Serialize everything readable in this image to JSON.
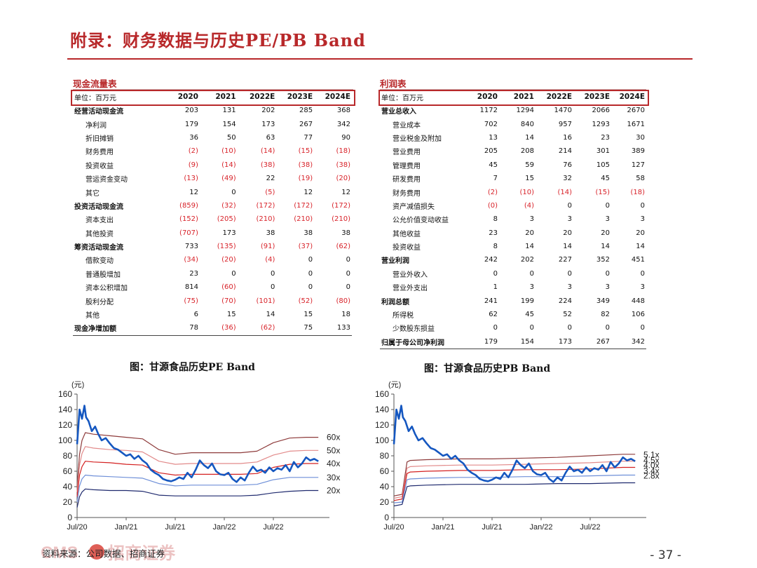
{
  "page": {
    "title": "附录：财务数据与历史PE/PB Band",
    "page_number": "- 37 -",
    "source": "资料来源：公司数据、招商证券",
    "logo_text": "CMS 招商证券"
  },
  "cash_flow": {
    "label": "现金流量表",
    "unit": "单位：百万元",
    "years": [
      "2020",
      "2021",
      "2022E",
      "2023E",
      "2024E"
    ],
    "rows": [
      {
        "label": "经营活动现金流",
        "bold": true,
        "values": [
          "203",
          "131",
          "202",
          "285",
          "368"
        ]
      },
      {
        "label": "净利润",
        "values": [
          "179",
          "154",
          "173",
          "267",
          "342"
        ]
      },
      {
        "label": "折旧摊销",
        "values": [
          "36",
          "50",
          "63",
          "77",
          "90"
        ]
      },
      {
        "label": "财务费用",
        "values": [
          "(2)",
          "(10)",
          "(14)",
          "(15)",
          "(18)"
        ]
      },
      {
        "label": "投资收益",
        "values": [
          "(9)",
          "(14)",
          "(38)",
          "(38)",
          "(38)"
        ]
      },
      {
        "label": "营运资金变动",
        "values": [
          "(13)",
          "(49)",
          "22",
          "(19)",
          "(20)"
        ]
      },
      {
        "label": "其它",
        "values": [
          "12",
          "0",
          "(5)",
          "12",
          "12"
        ]
      },
      {
        "label": "投资活动现金流",
        "bold": true,
        "values": [
          "(859)",
          "(32)",
          "(172)",
          "(172)",
          "(172)"
        ]
      },
      {
        "label": "资本支出",
        "values": [
          "(152)",
          "(205)",
          "(210)",
          "(210)",
          "(210)"
        ]
      },
      {
        "label": "其他投资",
        "values": [
          "(707)",
          "173",
          "38",
          "38",
          "38"
        ]
      },
      {
        "label": "筹资活动现金流",
        "bold": true,
        "values": [
          "733",
          "(135)",
          "(91)",
          "(37)",
          "(62)"
        ]
      },
      {
        "label": "借款变动",
        "values": [
          "(34)",
          "(20)",
          "(4)",
          "0",
          "0"
        ]
      },
      {
        "label": "普通股增加",
        "values": [
          "23",
          "0",
          "0",
          "0",
          "0"
        ]
      },
      {
        "label": "资本公积增加",
        "values": [
          "814",
          "(60)",
          "0",
          "0",
          "0"
        ]
      },
      {
        "label": "股利分配",
        "values": [
          "(75)",
          "(70)",
          "(101)",
          "(52)",
          "(80)"
        ]
      },
      {
        "label": "其他",
        "values": [
          "6",
          "15",
          "14",
          "15",
          "18"
        ]
      },
      {
        "label": "现金净增加额",
        "bold": true,
        "values": [
          "78",
          "(36)",
          "(62)",
          "75",
          "133"
        ]
      }
    ]
  },
  "income": {
    "label": "利润表",
    "unit": "单位：百万元",
    "years": [
      "2020",
      "2021",
      "2022E",
      "2023E",
      "2024E"
    ],
    "rows": [
      {
        "label": "营业总收入",
        "bold": true,
        "values": [
          "1172",
          "1294",
          "1470",
          "2066",
          "2670"
        ]
      },
      {
        "label": "营业成本",
        "values": [
          "702",
          "840",
          "957",
          "1293",
          "1671"
        ]
      },
      {
        "label": "营业税金及附加",
        "values": [
          "13",
          "14",
          "16",
          "23",
          "30"
        ]
      },
      {
        "label": "营业费用",
        "values": [
          "205",
          "208",
          "214",
          "301",
          "389"
        ]
      },
      {
        "label": "管理费用",
        "values": [
          "45",
          "59",
          "76",
          "105",
          "127"
        ]
      },
      {
        "label": "研发费用",
        "values": [
          "7",
          "15",
          "32",
          "45",
          "58"
        ]
      },
      {
        "label": "财务费用",
        "values": [
          "(2)",
          "(10)",
          "(14)",
          "(15)",
          "(18)"
        ]
      },
      {
        "label": "资产减值损失",
        "values": [
          "(0)",
          "(4)",
          "0",
          "0",
          "0"
        ]
      },
      {
        "label": "公允价值变动收益",
        "values": [
          "8",
          "3",
          "3",
          "3",
          "3"
        ]
      },
      {
        "label": "其他收益",
        "values": [
          "23",
          "20",
          "20",
          "20",
          "20"
        ]
      },
      {
        "label": "投资收益",
        "values": [
          "8",
          "14",
          "14",
          "14",
          "14"
        ]
      },
      {
        "label": "营业利润",
        "bold": true,
        "values": [
          "242",
          "202",
          "227",
          "352",
          "451"
        ]
      },
      {
        "label": "营业外收入",
        "values": [
          "0",
          "0",
          "0",
          "0",
          "0"
        ]
      },
      {
        "label": "营业外支出",
        "values": [
          "1",
          "3",
          "3",
          "3",
          "3"
        ]
      },
      {
        "label": "利润总额",
        "bold": true,
        "values": [
          "241",
          "199",
          "224",
          "349",
          "448"
        ]
      },
      {
        "label": "所得税",
        "values": [
          "62",
          "45",
          "52",
          "82",
          "106"
        ]
      },
      {
        "label": "少数股东损益",
        "values": [
          "0",
          "0",
          "0",
          "0",
          "0"
        ]
      },
      {
        "label": "归属于母公司净利润",
        "bold": true,
        "values": [
          "179",
          "154",
          "173",
          "267",
          "342"
        ]
      }
    ]
  },
  "charts": {
    "pe_caption": "图：甘源食品历史PE Band",
    "pb_caption": "图：甘源食品历史PB Band"
  },
  "chart_data": [
    {
      "type": "line",
      "title": "图：甘源食品历史PE Band",
      "ylabel": "(元)",
      "ylim": [
        0,
        160
      ],
      "yticks": [
        "0",
        "20",
        "40",
        "60",
        "80",
        "100",
        "120",
        "140",
        "160"
      ],
      "xticks": [
        "Jul/20",
        "Jan/21",
        "Jul/21",
        "Jan/22",
        "Jul/22"
      ],
      "xlim": [
        0,
        30
      ],
      "series": [
        {
          "name": "60x",
          "color": "#8e3b3b",
          "x": [
            0,
            0.3,
            0.6,
            1,
            2,
            4,
            6,
            8,
            10,
            12,
            14,
            16,
            18,
            20,
            22,
            24,
            26,
            28,
            29.5
          ],
          "values": [
            40,
            82,
            100,
            110,
            108,
            106,
            104,
            102,
            88,
            82,
            84,
            84,
            84,
            84,
            86,
            97,
            103,
            104,
            104
          ]
        },
        {
          "name": "50x",
          "color": "#e28a8a",
          "x": [
            0,
            0.3,
            0.6,
            1,
            2,
            4,
            6,
            8,
            10,
            12,
            14,
            16,
            18,
            20,
            22,
            24,
            26,
            28,
            29.5
          ],
          "values": [
            33,
            68,
            83,
            92,
            90,
            88,
            87,
            85,
            73,
            69,
            70,
            70,
            70,
            70,
            72,
            81,
            86,
            87,
            87
          ]
        },
        {
          "name": "40x",
          "color": "#d42020",
          "x": [
            0,
            0.3,
            0.6,
            1,
            2,
            4,
            6,
            8,
            10,
            12,
            14,
            16,
            18,
            20,
            22,
            24,
            26,
            28,
            29.5
          ],
          "values": [
            27,
            55,
            66,
            73,
            72,
            71,
            69,
            68,
            58,
            55,
            56,
            56,
            56,
            56,
            57,
            65,
            69,
            70,
            70
          ]
        },
        {
          "name": "30x",
          "color": "#6e8fd8",
          "x": [
            0,
            0.3,
            0.6,
            1,
            2,
            4,
            6,
            8,
            10,
            12,
            14,
            16,
            18,
            20,
            22,
            24,
            26,
            28,
            29.5
          ],
          "values": [
            20,
            41,
            50,
            55,
            54,
            53,
            52,
            51,
            44,
            41,
            42,
            42,
            42,
            42,
            43,
            49,
            52,
            52,
            52
          ]
        },
        {
          "name": "20x",
          "color": "#1f2a6e",
          "x": [
            0,
            0.3,
            0.6,
            1,
            2,
            4,
            6,
            8,
            10,
            12,
            14,
            16,
            18,
            20,
            22,
            24,
            26,
            28,
            29.5
          ],
          "values": [
            13,
            27,
            33,
            37,
            36,
            35,
            35,
            34,
            29,
            28,
            28,
            28,
            28,
            28,
            29,
            32,
            34,
            35,
            35
          ]
        },
        {
          "name": "price",
          "color": "#1557c0",
          "x": [
            0,
            0.3,
            0.6,
            0.9,
            1.1,
            1.4,
            1.8,
            2.2,
            2.6,
            3,
            3.5,
            4,
            4.5,
            5,
            5.5,
            6,
            6.5,
            7,
            7.5,
            8,
            8.5,
            9,
            9.5,
            10,
            10.5,
            11,
            11.5,
            12,
            12.5,
            13,
            13.5,
            14,
            14.5,
            15,
            15.5,
            16,
            16.5,
            17,
            17.5,
            18,
            18.5,
            19,
            19.5,
            20,
            20.5,
            21,
            21.5,
            22,
            22.5,
            23,
            23.5,
            24,
            24.5,
            25,
            25.5,
            26,
            26.5,
            27,
            27.5,
            28,
            28.5,
            29,
            29.5
          ],
          "values": [
            95,
            140,
            128,
            145,
            130,
            125,
            112,
            118,
            108,
            100,
            103,
            96,
            90,
            88,
            84,
            80,
            82,
            76,
            80,
            74,
            70,
            62,
            58,
            55,
            50,
            48,
            47,
            49,
            52,
            50,
            58,
            52,
            62,
            74,
            68,
            64,
            70,
            60,
            56,
            55,
            58,
            50,
            46,
            52,
            48,
            58,
            66,
            60,
            62,
            58,
            65,
            60,
            64,
            62,
            68,
            60,
            72,
            65,
            70,
            78,
            74,
            76,
            73
          ]
        }
      ]
    },
    {
      "type": "line",
      "title": "图：甘源食品历史PB Band",
      "ylabel": "(元)",
      "ylim": [
        0,
        160
      ],
      "yticks": [
        "0",
        "20",
        "40",
        "60",
        "80",
        "100",
        "120",
        "140",
        "160"
      ],
      "xticks": [
        "Jul/20",
        "Jan/21",
        "Jul/21",
        "Jan/22",
        "Jul/22"
      ],
      "xlim": [
        0,
        30
      ],
      "series": [
        {
          "name": "5.1x",
          "color": "#8e3b3b",
          "x": [
            0,
            1,
            1.6,
            2,
            4,
            8,
            12,
            16,
            20,
            24,
            28,
            29.5
          ],
          "values": [
            28,
            30,
            72,
            74,
            75,
            76,
            76,
            77,
            78,
            80,
            82,
            82
          ]
        },
        {
          "name": "4.5x",
          "color": "#e28a8a",
          "x": [
            0,
            1,
            1.6,
            2,
            4,
            8,
            12,
            16,
            20,
            24,
            28,
            29.5
          ],
          "values": [
            25,
            27,
            64,
            66,
            67,
            68,
            68,
            69,
            70,
            71,
            73,
            73
          ]
        },
        {
          "name": "4.0x",
          "color": "#d42020",
          "x": [
            0,
            1,
            1.6,
            2,
            4,
            8,
            12,
            16,
            20,
            24,
            28,
            29.5
          ],
          "values": [
            22,
            24,
            57,
            59,
            60,
            61,
            61,
            62,
            62,
            63,
            65,
            65
          ]
        },
        {
          "name": "3.4x",
          "color": "#6e8fd8",
          "x": [
            0,
            1,
            1.6,
            2,
            4,
            8,
            12,
            16,
            20,
            24,
            28,
            29.5
          ],
          "values": [
            19,
            20,
            49,
            50,
            51,
            52,
            52,
            53,
            53,
            54,
            55,
            55
          ]
        },
        {
          "name": "2.8x",
          "color": "#1f2a6e",
          "x": [
            0,
            1,
            1.6,
            2,
            4,
            8,
            12,
            16,
            20,
            24,
            28,
            29.5
          ],
          "values": [
            15,
            17,
            40,
            41,
            42,
            43,
            43,
            43,
            44,
            44,
            45,
            45
          ]
        },
        {
          "name": "price",
          "color": "#1557c0",
          "x": [
            0,
            0.3,
            0.6,
            0.9,
            1.1,
            1.4,
            1.8,
            2.2,
            2.6,
            3,
            3.5,
            4,
            4.5,
            5,
            5.5,
            6,
            6.5,
            7,
            7.5,
            8,
            8.5,
            9,
            9.5,
            10,
            10.5,
            11,
            11.5,
            12,
            12.5,
            13,
            13.5,
            14,
            14.5,
            15,
            15.5,
            16,
            16.5,
            17,
            17.5,
            18,
            18.5,
            19,
            19.5,
            20,
            20.5,
            21,
            21.5,
            22,
            22.5,
            23,
            23.5,
            24,
            24.5,
            25,
            25.5,
            26,
            26.5,
            27,
            27.5,
            28,
            28.5,
            29,
            29.5
          ],
          "values": [
            95,
            140,
            128,
            145,
            130,
            125,
            112,
            118,
            108,
            100,
            103,
            96,
            90,
            88,
            84,
            80,
            82,
            76,
            80,
            74,
            70,
            62,
            58,
            55,
            50,
            48,
            47,
            49,
            52,
            50,
            58,
            52,
            62,
            74,
            68,
            64,
            70,
            60,
            56,
            55,
            58,
            50,
            46,
            52,
            48,
            58,
            66,
            60,
            62,
            58,
            65,
            60,
            64,
            62,
            68,
            60,
            72,
            65,
            70,
            78,
            74,
            76,
            73
          ]
        }
      ]
    }
  ]
}
